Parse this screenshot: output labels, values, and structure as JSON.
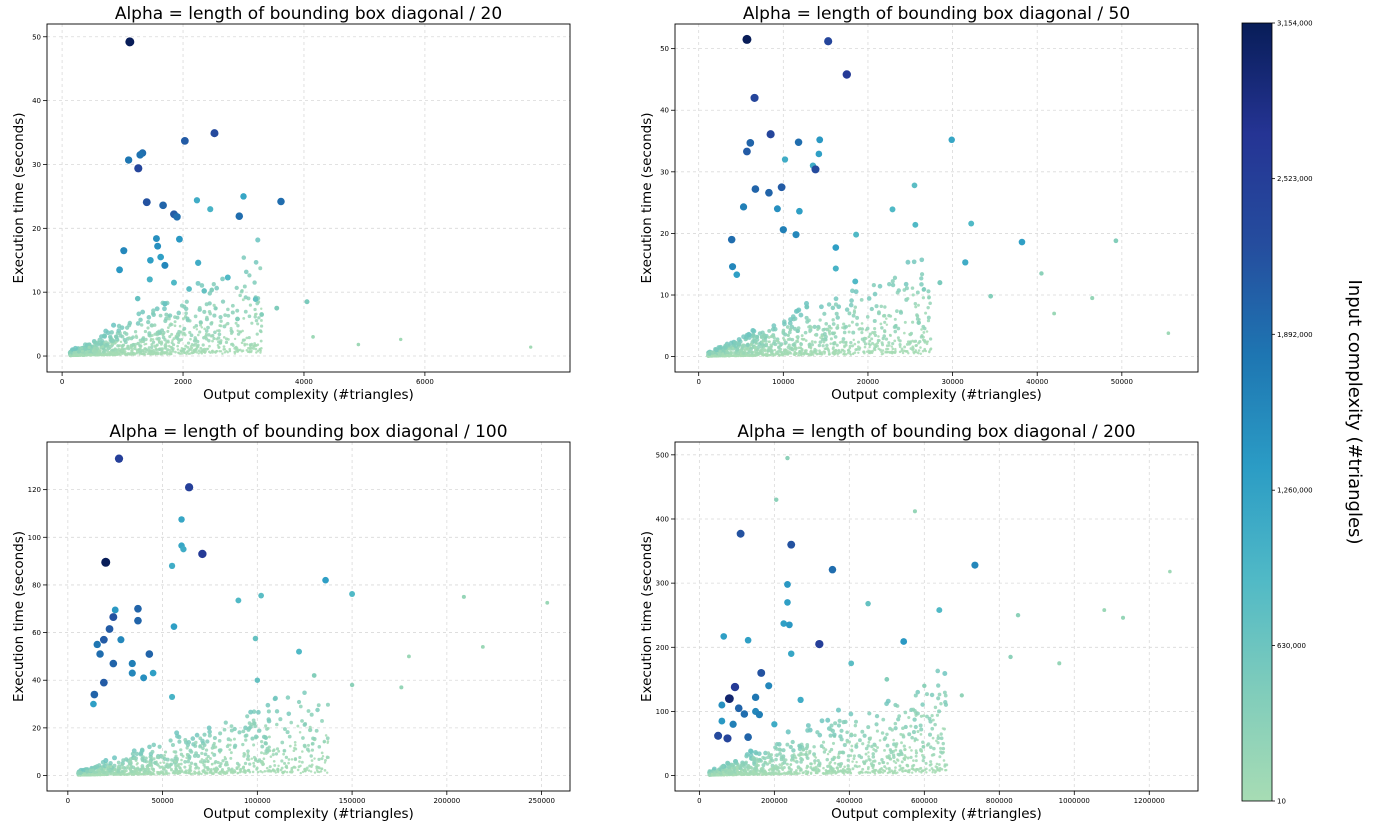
{
  "chart_data": [
    {
      "type": "scatter",
      "title": "Alpha = length of bounding box diagonal / 20",
      "xlabel": "Output complexity (#triangles)",
      "ylabel": "Execution time (seconds)",
      "xlim": [
        -250,
        8400
      ],
      "ylim": [
        -2.5,
        52
      ],
      "xticks": [
        0,
        2000,
        4000,
        6000
      ],
      "yticks": [
        0,
        10,
        20,
        30,
        40,
        50
      ],
      "grid": true,
      "points": [
        {
          "x": 1120,
          "y": 49.2,
          "c": 3154000
        },
        {
          "x": 2520,
          "y": 34.9,
          "c": 2300000
        },
        {
          "x": 2030,
          "y": 33.7,
          "c": 2100000
        },
        {
          "x": 1330,
          "y": 31.8,
          "c": 1900000
        },
        {
          "x": 1290,
          "y": 31.5,
          "c": 1850000
        },
        {
          "x": 1100,
          "y": 30.7,
          "c": 1800000
        },
        {
          "x": 1260,
          "y": 29.4,
          "c": 2400000
        },
        {
          "x": 3000,
          "y": 25.0,
          "c": 1200000
        },
        {
          "x": 2230,
          "y": 24.4,
          "c": 1100000
        },
        {
          "x": 1400,
          "y": 24.1,
          "c": 2200000
        },
        {
          "x": 3620,
          "y": 24.2,
          "c": 1900000
        },
        {
          "x": 1670,
          "y": 23.6,
          "c": 2000000
        },
        {
          "x": 2450,
          "y": 23.0,
          "c": 1000000
        },
        {
          "x": 1850,
          "y": 22.2,
          "c": 2100000
        },
        {
          "x": 1900,
          "y": 21.8,
          "c": 1900000
        },
        {
          "x": 2930,
          "y": 21.9,
          "c": 1900000
        },
        {
          "x": 1560,
          "y": 18.4,
          "c": 1500000
        },
        {
          "x": 1940,
          "y": 18.3,
          "c": 1400000
        },
        {
          "x": 1020,
          "y": 16.5,
          "c": 1600000
        },
        {
          "x": 1580,
          "y": 17.2,
          "c": 1500000
        },
        {
          "x": 1630,
          "y": 15.5,
          "c": 1300000
        },
        {
          "x": 1460,
          "y": 15.0,
          "c": 1300000
        },
        {
          "x": 2250,
          "y": 14.6,
          "c": 1100000
        },
        {
          "x": 1700,
          "y": 14.2,
          "c": 1600000
        },
        {
          "x": 950,
          "y": 13.5,
          "c": 1400000
        },
        {
          "x": 2740,
          "y": 12.3,
          "c": 900000
        },
        {
          "x": 1450,
          "y": 12.0,
          "c": 1000000
        },
        {
          "x": 1850,
          "y": 11.5,
          "c": 900000
        },
        {
          "x": 2100,
          "y": 10.5,
          "c": 800000
        },
        {
          "x": 2350,
          "y": 10.2,
          "c": 700000
        },
        {
          "x": 3200,
          "y": 8.9,
          "c": 700000
        },
        {
          "x": 4050,
          "y": 8.5,
          "c": 500000
        },
        {
          "x": 1250,
          "y": 9.0,
          "c": 700000
        },
        {
          "x": 1700,
          "y": 8.2,
          "c": 650000
        },
        {
          "x": 3550,
          "y": 7.5,
          "c": 450000
        },
        {
          "x": 3300,
          "y": 6.5,
          "c": 400000
        },
        {
          "x": 2900,
          "y": 5.8,
          "c": 400000
        },
        {
          "x": 4150,
          "y": 3.0,
          "c": 120000
        },
        {
          "x": 4900,
          "y": 1.8,
          "c": 100000
        },
        {
          "x": 5600,
          "y": 2.6,
          "c": 80000
        },
        {
          "x": 7750,
          "y": 1.4,
          "c": 60000
        }
      ]
    },
    {
      "type": "scatter",
      "title": "Alpha = length of bounding box diagonal / 50",
      "xlabel": "Output complexity (#triangles)",
      "ylabel": "Execution time (seconds)",
      "xlim": [
        -2800,
        59000
      ],
      "ylim": [
        -2.5,
        54
      ],
      "xticks": [
        0,
        10000,
        20000,
        30000,
        40000,
        50000
      ],
      "yticks": [
        0,
        10,
        20,
        30,
        40,
        50
      ],
      "grid": true,
      "points": [
        {
          "x": 5700,
          "y": 51.5,
          "c": 3154000
        },
        {
          "x": 15300,
          "y": 51.2,
          "c": 2400000
        },
        {
          "x": 17500,
          "y": 45.8,
          "c": 2600000
        },
        {
          "x": 6600,
          "y": 42.0,
          "c": 2400000
        },
        {
          "x": 8500,
          "y": 36.1,
          "c": 2400000
        },
        {
          "x": 6100,
          "y": 34.7,
          "c": 2000000
        },
        {
          "x": 11800,
          "y": 34.8,
          "c": 1900000
        },
        {
          "x": 14300,
          "y": 35.2,
          "c": 1400000
        },
        {
          "x": 29900,
          "y": 35.2,
          "c": 1200000
        },
        {
          "x": 5700,
          "y": 33.3,
          "c": 2100000
        },
        {
          "x": 14200,
          "y": 32.9,
          "c": 1300000
        },
        {
          "x": 10200,
          "y": 32.0,
          "c": 1100000
        },
        {
          "x": 13500,
          "y": 31.0,
          "c": 1100000
        },
        {
          "x": 13800,
          "y": 30.4,
          "c": 2300000
        },
        {
          "x": 25500,
          "y": 27.8,
          "c": 800000
        },
        {
          "x": 6700,
          "y": 27.2,
          "c": 2000000
        },
        {
          "x": 9800,
          "y": 27.5,
          "c": 2100000
        },
        {
          "x": 8300,
          "y": 26.6,
          "c": 2000000
        },
        {
          "x": 5300,
          "y": 24.3,
          "c": 1700000
        },
        {
          "x": 9300,
          "y": 24.0,
          "c": 1500000
        },
        {
          "x": 11900,
          "y": 23.6,
          "c": 1300000
        },
        {
          "x": 22900,
          "y": 23.9,
          "c": 900000
        },
        {
          "x": 32200,
          "y": 21.6,
          "c": 900000
        },
        {
          "x": 25600,
          "y": 21.4,
          "c": 900000
        },
        {
          "x": 10000,
          "y": 20.6,
          "c": 1700000
        },
        {
          "x": 11500,
          "y": 19.8,
          "c": 1600000
        },
        {
          "x": 18600,
          "y": 19.8,
          "c": 900000
        },
        {
          "x": 3900,
          "y": 19.0,
          "c": 1900000
        },
        {
          "x": 38200,
          "y": 18.6,
          "c": 1300000
        },
        {
          "x": 49300,
          "y": 18.8,
          "c": 400000
        },
        {
          "x": 16200,
          "y": 17.7,
          "c": 1300000
        },
        {
          "x": 31500,
          "y": 15.3,
          "c": 1100000
        },
        {
          "x": 4000,
          "y": 14.6,
          "c": 1600000
        },
        {
          "x": 16200,
          "y": 14.3,
          "c": 1000000
        },
        {
          "x": 4500,
          "y": 13.3,
          "c": 1300000
        },
        {
          "x": 18500,
          "y": 12.2,
          "c": 900000
        },
        {
          "x": 28500,
          "y": 12.0,
          "c": 500000
        },
        {
          "x": 34500,
          "y": 9.8,
          "c": 400000
        },
        {
          "x": 40500,
          "y": 13.5,
          "c": 300000
        },
        {
          "x": 46500,
          "y": 9.5,
          "c": 200000
        },
        {
          "x": 42000,
          "y": 7.0,
          "c": 150000
        },
        {
          "x": 55500,
          "y": 3.8,
          "c": 100000
        },
        {
          "x": 26000,
          "y": 5.5,
          "c": 300000
        }
      ]
    },
    {
      "type": "scatter",
      "title": "Alpha = length of bounding box diagonal / 100",
      "xlabel": "Output complexity (#triangles)",
      "ylabel": "Execution time (seconds)",
      "xlim": [
        -11000,
        265000
      ],
      "ylim": [
        -6.5,
        140
      ],
      "xticks": [
        0,
        50000,
        100000,
        150000,
        200000,
        250000
      ],
      "yticks": [
        0,
        20,
        40,
        60,
        80,
        100,
        120
      ],
      "grid": true,
      "points": [
        {
          "x": 27000,
          "y": 133.0,
          "c": 2500000
        },
        {
          "x": 64000,
          "y": 121.0,
          "c": 2500000
        },
        {
          "x": 20000,
          "y": 89.5,
          "c": 3154000
        },
        {
          "x": 71000,
          "y": 93.0,
          "c": 2600000
        },
        {
          "x": 60000,
          "y": 107.5,
          "c": 1200000
        },
        {
          "x": 60000,
          "y": 96.5,
          "c": 1200000
        },
        {
          "x": 61000,
          "y": 95.0,
          "c": 1100000
        },
        {
          "x": 55000,
          "y": 88.0,
          "c": 1100000
        },
        {
          "x": 136000,
          "y": 82.0,
          "c": 1300000
        },
        {
          "x": 150000,
          "y": 76.2,
          "c": 900000
        },
        {
          "x": 102000,
          "y": 75.5,
          "c": 800000
        },
        {
          "x": 90000,
          "y": 73.5,
          "c": 900000
        },
        {
          "x": 25000,
          "y": 69.5,
          "c": 1400000
        },
        {
          "x": 37000,
          "y": 70.0,
          "c": 2000000
        },
        {
          "x": 24000,
          "y": 66.5,
          "c": 2200000
        },
        {
          "x": 37000,
          "y": 65.0,
          "c": 2000000
        },
        {
          "x": 56000,
          "y": 62.5,
          "c": 1300000
        },
        {
          "x": 22000,
          "y": 61.5,
          "c": 2100000
        },
        {
          "x": 28000,
          "y": 57.0,
          "c": 1600000
        },
        {
          "x": 19000,
          "y": 57.0,
          "c": 2100000
        },
        {
          "x": 15500,
          "y": 55.0,
          "c": 1800000
        },
        {
          "x": 99000,
          "y": 57.5,
          "c": 700000
        },
        {
          "x": 122000,
          "y": 52.0,
          "c": 900000
        },
        {
          "x": 43000,
          "y": 51.0,
          "c": 2000000
        },
        {
          "x": 17000,
          "y": 51.0,
          "c": 1900000
        },
        {
          "x": 34000,
          "y": 47.0,
          "c": 1700000
        },
        {
          "x": 24000,
          "y": 47.0,
          "c": 2000000
        },
        {
          "x": 34000,
          "y": 43.0,
          "c": 1600000
        },
        {
          "x": 40000,
          "y": 41.0,
          "c": 1500000
        },
        {
          "x": 45000,
          "y": 43.0,
          "c": 1300000
        },
        {
          "x": 100000,
          "y": 40.0,
          "c": 700000
        },
        {
          "x": 19000,
          "y": 39.0,
          "c": 2100000
        },
        {
          "x": 14000,
          "y": 34.0,
          "c": 2000000
        },
        {
          "x": 55000,
          "y": 33.0,
          "c": 1000000
        },
        {
          "x": 13500,
          "y": 30.0,
          "c": 1300000
        },
        {
          "x": 209000,
          "y": 75.0,
          "c": 200000
        },
        {
          "x": 253000,
          "y": 72.5,
          "c": 150000
        },
        {
          "x": 219000,
          "y": 54.0,
          "c": 150000
        },
        {
          "x": 180000,
          "y": 50.0,
          "c": 150000
        },
        {
          "x": 150000,
          "y": 38.0,
          "c": 300000
        },
        {
          "x": 176000,
          "y": 37.0,
          "c": 200000
        },
        {
          "x": 130000,
          "y": 42.0,
          "c": 400000
        }
      ]
    },
    {
      "type": "scatter",
      "title": "Alpha = length of bounding box diagonal / 200",
      "xlabel": "Output complexity (#triangles)",
      "ylabel": "Execution time (seconds)",
      "xlim": [
        -65000,
        1330000
      ],
      "ylim": [
        -24,
        520
      ],
      "xticks": [
        0,
        200000,
        400000,
        600000,
        800000,
        1000000,
        1200000
      ],
      "yticks": [
        0,
        100,
        200,
        300,
        400,
        500
      ],
      "grid": true,
      "points": [
        {
          "x": 235000,
          "y": 495.0,
          "c": 300000
        },
        {
          "x": 205000,
          "y": 430.0,
          "c": 300000
        },
        {
          "x": 575000,
          "y": 412.0,
          "c": 200000
        },
        {
          "x": 110000,
          "y": 377.0,
          "c": 2200000
        },
        {
          "x": 245000,
          "y": 360.0,
          "c": 2200000
        },
        {
          "x": 355000,
          "y": 321.0,
          "c": 1900000
        },
        {
          "x": 735000,
          "y": 328.0,
          "c": 1600000
        },
        {
          "x": 1255000,
          "y": 318.0,
          "c": 100000
        },
        {
          "x": 235000,
          "y": 298.0,
          "c": 1400000
        },
        {
          "x": 235000,
          "y": 270.0,
          "c": 1300000
        },
        {
          "x": 450000,
          "y": 268.0,
          "c": 700000
        },
        {
          "x": 640000,
          "y": 258.0,
          "c": 900000
        },
        {
          "x": 1080000,
          "y": 258.0,
          "c": 150000
        },
        {
          "x": 1130000,
          "y": 246.0,
          "c": 200000
        },
        {
          "x": 850000,
          "y": 250.0,
          "c": 300000
        },
        {
          "x": 225000,
          "y": 237.0,
          "c": 1300000
        },
        {
          "x": 240000,
          "y": 235.0,
          "c": 1400000
        },
        {
          "x": 65000,
          "y": 217.0,
          "c": 1300000
        },
        {
          "x": 130000,
          "y": 211.0,
          "c": 1300000
        },
        {
          "x": 545000,
          "y": 209.0,
          "c": 1400000
        },
        {
          "x": 320000,
          "y": 205.0,
          "c": 2500000
        },
        {
          "x": 245000,
          "y": 190.0,
          "c": 1200000
        },
        {
          "x": 405000,
          "y": 175.0,
          "c": 800000
        },
        {
          "x": 165000,
          "y": 160.0,
          "c": 2200000
        },
        {
          "x": 185000,
          "y": 140.0,
          "c": 1600000
        },
        {
          "x": 95000,
          "y": 138.0,
          "c": 2600000
        },
        {
          "x": 80000,
          "y": 120.0,
          "c": 3000000
        },
        {
          "x": 150000,
          "y": 122.0,
          "c": 1800000
        },
        {
          "x": 270000,
          "y": 118.0,
          "c": 1100000
        },
        {
          "x": 60000,
          "y": 110.0,
          "c": 1500000
        },
        {
          "x": 105000,
          "y": 105.0,
          "c": 2000000
        },
        {
          "x": 150000,
          "y": 100.0,
          "c": 1600000
        },
        {
          "x": 120000,
          "y": 96.0,
          "c": 1900000
        },
        {
          "x": 160000,
          "y": 95.0,
          "c": 1700000
        },
        {
          "x": 60000,
          "y": 85.0,
          "c": 1400000
        },
        {
          "x": 90000,
          "y": 80.0,
          "c": 1700000
        },
        {
          "x": 200000,
          "y": 80.0,
          "c": 1100000
        },
        {
          "x": 50000,
          "y": 62.0,
          "c": 2300000
        },
        {
          "x": 75000,
          "y": 58.0,
          "c": 2400000
        },
        {
          "x": 130000,
          "y": 60.0,
          "c": 2000000
        },
        {
          "x": 830000,
          "y": 185.0,
          "c": 300000
        },
        {
          "x": 960000,
          "y": 175.0,
          "c": 200000
        },
        {
          "x": 700000,
          "y": 125.0,
          "c": 250000
        },
        {
          "x": 600000,
          "y": 140.0,
          "c": 300000
        },
        {
          "x": 500000,
          "y": 150.0,
          "c": 400000
        }
      ]
    }
  ],
  "colorbar": {
    "label": "Input complexity (#triangles)",
    "min": 10,
    "max": 3154000,
    "ticks": [
      {
        "value": 3154000,
        "label": "3,154,000"
      },
      {
        "value": 2523000,
        "label": "2,523,000"
      },
      {
        "value": 1892000,
        "label": "1,892,000"
      },
      {
        "value": 1260000,
        "label": "1,260,000"
      },
      {
        "value": 630000,
        "label": "630,000"
      },
      {
        "value": 10,
        "label": "10"
      }
    ],
    "colormap": [
      "#a7dcb4",
      "#7fccbb",
      "#50b9c6",
      "#2b9cc5",
      "#1e76b2",
      "#254d9e",
      "#253494",
      "#081d58"
    ]
  },
  "colors": {
    "grid": "#d9d9d9",
    "axis": "#000000"
  }
}
